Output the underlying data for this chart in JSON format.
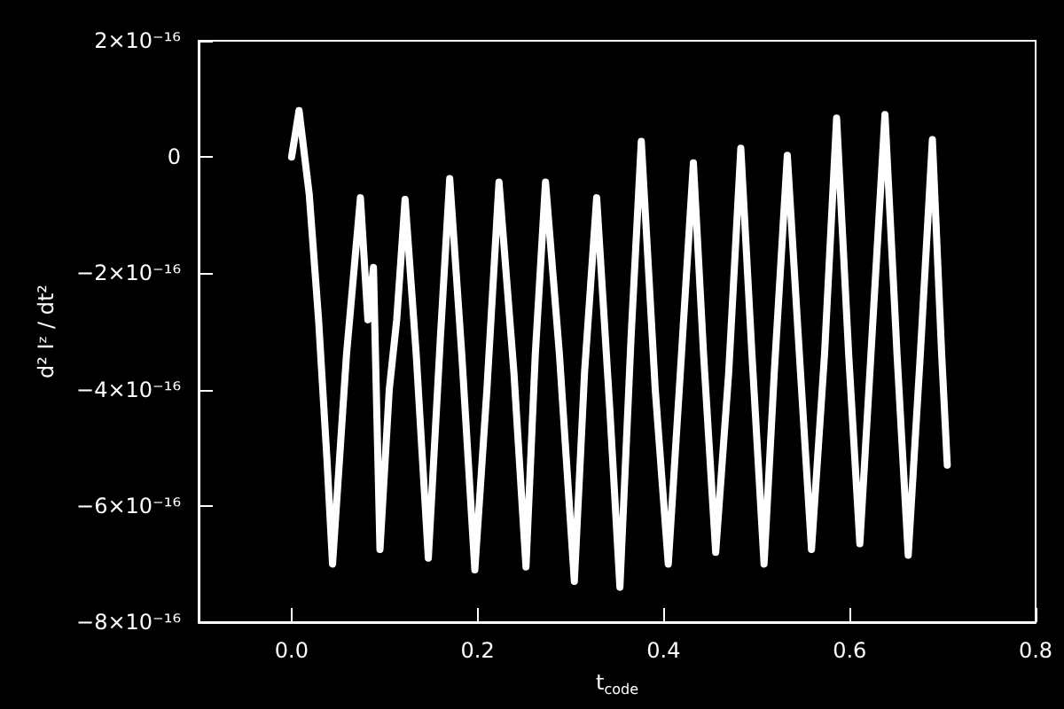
{
  "chart_data": {
    "type": "line",
    "xlabel": "t$_{code}$",
    "ylabel": "d² Iᶻ / dt²",
    "x": [
      0.0,
      0.008,
      0.019,
      0.029,
      0.038,
      0.044,
      0.059,
      0.074,
      0.082,
      0.088,
      0.095,
      0.105,
      0.113,
      0.122,
      0.134,
      0.147,
      0.16,
      0.17,
      0.183,
      0.197,
      0.21,
      0.223,
      0.239,
      0.252,
      0.262,
      0.273,
      0.288,
      0.304,
      0.315,
      0.328,
      0.342,
      0.353,
      0.365,
      0.376,
      0.391,
      0.405,
      0.418,
      0.432,
      0.443,
      0.456,
      0.47,
      0.483,
      0.495,
      0.508,
      0.519,
      0.533,
      0.546,
      0.559,
      0.573,
      0.586,
      0.599,
      0.611,
      0.624,
      0.638,
      0.651,
      0.663,
      0.676,
      0.689,
      0.699,
      0.705
    ],
    "series": [
      {
        "color": "#ffffff",
        "values": [
          0.0,
          8e-17,
          -6.5e-17,
          -2.8e-16,
          -5.2e-16,
          -7e-16,
          -3.4e-16,
          -7e-17,
          -2.8e-16,
          -1.9e-16,
          -6.75e-16,
          -4e-16,
          -2.8e-16,
          -7.3e-17,
          -3.4e-16,
          -6.9e-16,
          -3.1e-16,
          -3.7e-17,
          -3.4e-16,
          -7.1e-16,
          -4e-16,
          -4.3e-17,
          -3.7e-16,
          -7.05e-16,
          -3.4e-16,
          -4.3e-17,
          -3.4e-16,
          -7.3e-16,
          -3.7e-16,
          -7e-17,
          -4.3e-16,
          -7.4e-16,
          -3.1e-16,
          2.7e-17,
          -4e-16,
          -7e-16,
          -3.7e-16,
          -1e-17,
          -3.4e-16,
          -6.8e-16,
          -3.7e-16,
          1.5e-17,
          -3.4e-16,
          -7e-16,
          -3.7e-16,
          3e-18,
          -3.4e-16,
          -6.75e-16,
          -3.4e-16,
          6.7e-17,
          -3.4e-16,
          -6.65e-16,
          -3.1e-16,
          7.3e-17,
          -3.4e-16,
          -6.85e-16,
          -3.4e-16,
          3e-17,
          -3.4e-16,
          -5.3e-16
        ]
      }
    ],
    "xlim": [
      -0.1,
      0.8
    ],
    "xticks": [
      {
        "value": 0,
        "label": "0.0"
      },
      {
        "value": 0.2,
        "label": "0.2"
      },
      {
        "value": 0.4,
        "label": "0.4"
      },
      {
        "value": 0.6,
        "label": "0.6"
      },
      {
        "value": 0.8,
        "label": "0.8"
      }
    ],
    "ylim": [
      -8e-16,
      2e-16
    ],
    "yticks": [
      {
        "value": -8e-16,
        "label": "−8×10⁻¹⁶"
      },
      {
        "value": -6e-16,
        "label": "−6×10⁻¹⁶"
      },
      {
        "value": -4e-16,
        "label": "−4×10⁻¹⁶"
      },
      {
        "value": -2e-16,
        "label": "−2×10⁻¹⁶"
      },
      0,
      {
        "value": 2e-16,
        "label": "2×10⁻¹⁶"
      }
    ],
    "grid": false,
    "marker": "none",
    "line_style": "solid"
  }
}
